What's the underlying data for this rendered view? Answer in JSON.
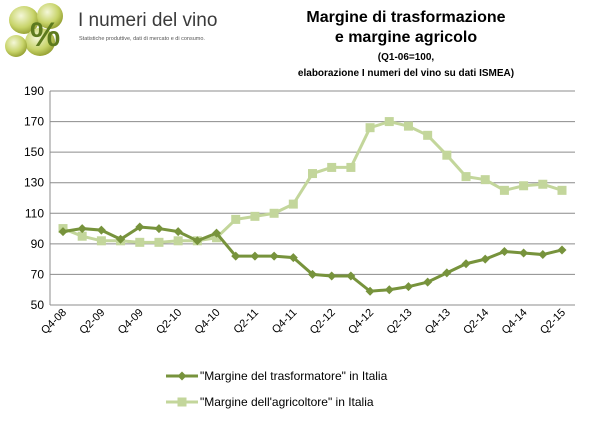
{
  "logo": {
    "title": "I numeri del vino",
    "subtitle": "Statistiche produttive, dati di mercato e di consumo."
  },
  "chart_data": {
    "type": "line",
    "title_lines": [
      "Margine di trasformazione",
      "e margine agricolo"
    ],
    "subtitle_lines": [
      "(Q1-06=100,",
      "elaborazione I numeri del vino su dati ISMEA)"
    ],
    "xlabel": "",
    "ylabel": "",
    "ylim": [
      50,
      190
    ],
    "yticks": [
      50,
      70,
      90,
      110,
      130,
      150,
      170,
      190
    ],
    "grid": true,
    "legend_position": "bottom",
    "x": [
      "Q4-08",
      "Q1-09",
      "Q2-09",
      "Q3-09",
      "Q4-09",
      "Q1-10",
      "Q2-10",
      "Q3-10",
      "Q4-10",
      "Q1-11",
      "Q2-11",
      "Q3-11",
      "Q4-11",
      "Q1-12",
      "Q2-12",
      "Q3-12",
      "Q4-12",
      "Q1-13",
      "Q2-13",
      "Q3-13",
      "Q4-13",
      "Q1-14",
      "Q2-14",
      "Q3-14",
      "Q4-14",
      "Q1-15",
      "Q2-15"
    ],
    "x_tick_labels": [
      "Q4-08",
      "Q2-09",
      "Q4-09",
      "Q2-10",
      "Q4-10",
      "Q2-11",
      "Q4-11",
      "Q2-12",
      "Q4-12",
      "Q2-13",
      "Q4-13",
      "Q2-14",
      "Q4-14",
      "Q2-15"
    ],
    "series": [
      {
        "name": "\"Margine del trasformatore\" in Italia",
        "color": "#77933c",
        "marker": "diamond",
        "values": [
          98,
          100,
          99,
          93,
          101,
          100,
          98,
          92,
          97,
          82,
          82,
          82,
          81,
          70,
          69,
          69,
          59,
          60,
          62,
          65,
          71,
          77,
          80,
          85,
          84,
          83,
          86
        ]
      },
      {
        "name": "\"Margine dell'agricoltore\" in Italia",
        "color": "#c3d69b",
        "marker": "square",
        "values": [
          100,
          95,
          92,
          92,
          91,
          91,
          92,
          92,
          94,
          106,
          108,
          110,
          116,
          136,
          140,
          140,
          166,
          170,
          167,
          161,
          148,
          134,
          132,
          125,
          128,
          129,
          125
        ]
      }
    ]
  }
}
